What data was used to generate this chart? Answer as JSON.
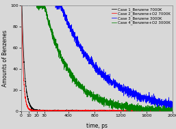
{
  "title": "",
  "xlabel": "time, ps",
  "ylabel": "Amounts of Benzenes",
  "ylim": [
    0,
    100
  ],
  "yticks": [
    0,
    20,
    40,
    60,
    80,
    100
  ],
  "xticks_left": [
    0,
    10,
    20,
    30
  ],
  "xticks_right": [
    400,
    800,
    1200,
    1600,
    2000
  ],
  "xlim_left": [
    0,
    30
  ],
  "xlim_right": [
    30,
    2000
  ],
  "legend": [
    "Case 1_Benzene 7000K",
    "Case 2_Benzene+O2 7000K",
    "Case 3_Benzene 3000K",
    "Case 4_Benzene+O2 3000K"
  ],
  "colors": [
    "black",
    "red",
    "blue",
    "green"
  ],
  "seed": 42,
  "background_color": "#d8d8d8",
  "font_size": 5.5
}
